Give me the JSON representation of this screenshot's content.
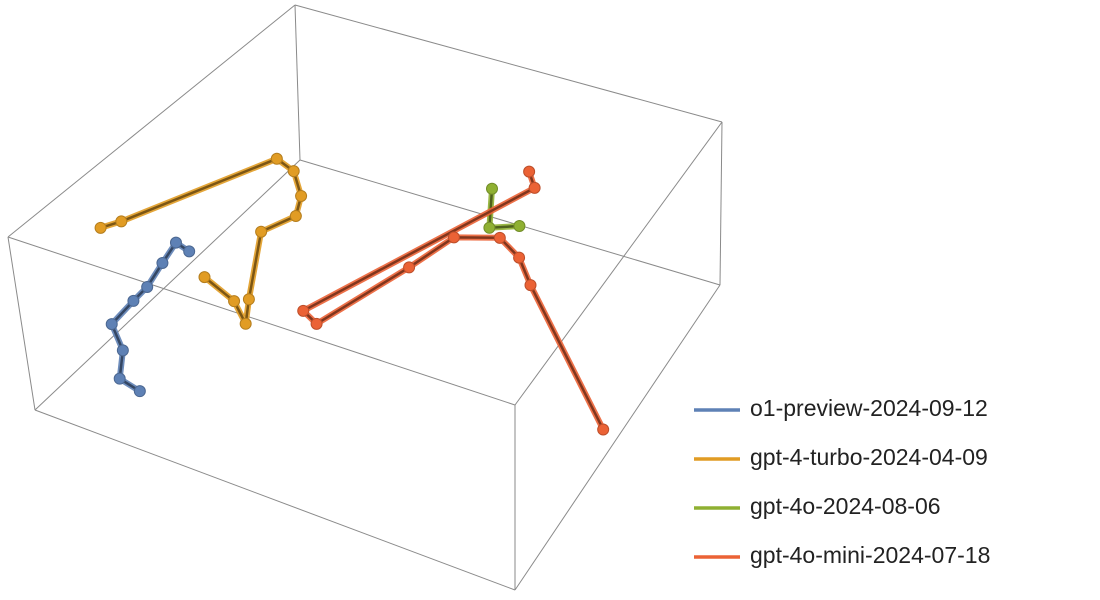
{
  "chart_data": {
    "type": "line3d",
    "xlim": [
      0,
      1
    ],
    "ylim": [
      0,
      1
    ],
    "zlim": [
      0,
      1
    ],
    "series": [
      {
        "name": "o1-preview-2024-09-12",
        "color": "#5e81b5",
        "x": [
          0.473,
          0.46,
          0.534,
          0.62,
          0.675,
          0.765,
          0.83,
          0.915,
          0.93
        ],
        "y": [
          0.039,
          0.002,
          0.016,
          0.033,
          0.035,
          0.04,
          0.1,
          0.14,
          0.19
        ],
        "z": [
          0.2,
          0.2,
          0.2,
          0.2,
          0.2,
          0.2,
          0.2,
          0.2,
          0.2
        ]
      },
      {
        "name": "gpt-4-turbo-2024-04-09",
        "color": "#e19c24",
        "x": [
          0.755,
          0.715,
          0.375,
          0.397,
          0.465,
          0.53,
          0.61,
          0.822,
          0.897,
          0.842,
          0.8
        ],
        "y": [
          0.035,
          0.055,
          0.19,
          0.24,
          0.295,
          0.32,
          0.29,
          0.378,
          0.41,
          0.358,
          0.275
        ],
        "z": [
          0.75,
          0.75,
          0.75,
          0.75,
          0.75,
          0.75,
          0.75,
          0.75,
          0.75,
          0.75,
          0.75
        ]
      },
      {
        "name": "gpt-4o-2024-08-06",
        "color": "#8fb032",
        "x": [
          0.27,
          0.387,
          0.355
        ],
        "y": [
          0.61,
          0.665,
          0.715
        ],
        "z": [
          0.75,
          0.75,
          0.75
        ]
      },
      {
        "name": "gpt-4o-mini-2024-07-18",
        "color": "#eb6235",
        "x": [
          0.187,
          0.23,
          0.803,
          0.828,
          0.576,
          0.447,
          0.407,
          0.447,
          0.516,
          0.515
        ],
        "y": [
          0.65,
          0.685,
          0.48,
          0.52,
          0.587,
          0.618,
          0.698,
          0.76,
          0.818,
          0.975
        ],
        "z": [
          0.75,
          0.75,
          0.75,
          0.75,
          0.75,
          0.75,
          0.75,
          0.75,
          0.75,
          0.05
        ]
      }
    ]
  }
}
